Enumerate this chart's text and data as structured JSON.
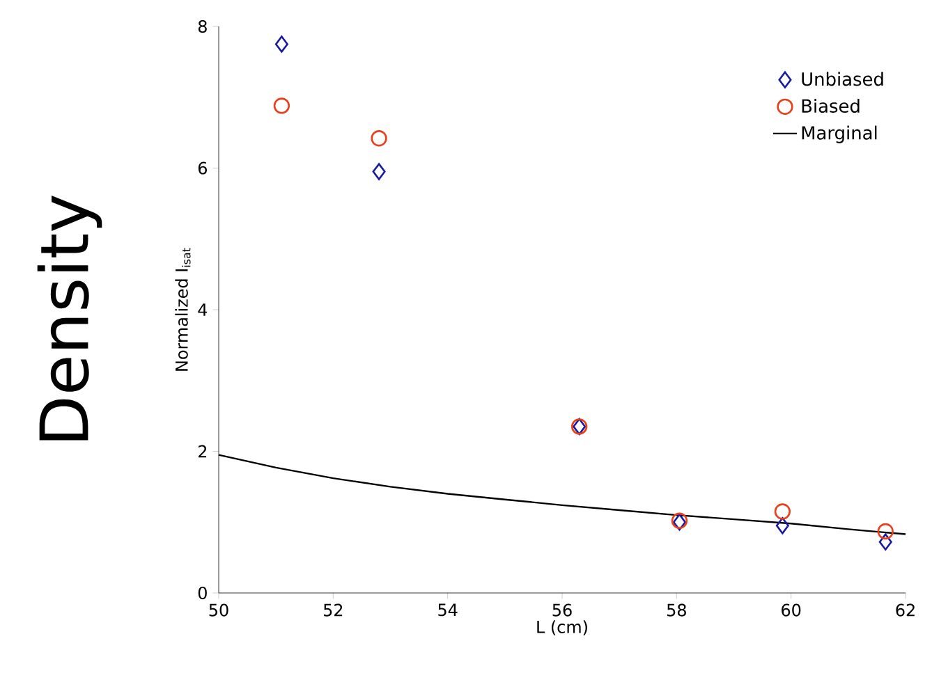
{
  "chart_data": {
    "type": "scatter",
    "xlabel": "L (cm)",
    "ylabel": "Normalized I$_{isat}$",
    "xlim": [
      50,
      62
    ],
    "xticks": [
      50,
      52,
      54,
      56,
      58,
      60,
      62
    ],
    "ylim": [
      0,
      8
    ],
    "yticks": [
      0,
      2,
      4,
      6,
      8
    ],
    "grid": false,
    "legend": "top right",
    "annotations": [
      "Density"
    ],
    "series": [
      {
        "name": "Unbiased",
        "marker": "diamond",
        "color": "#1a1aa0",
        "x": [
          51.1,
          52.8,
          56.3,
          58.05,
          59.85,
          61.65
        ],
        "values": [
          7.75,
          5.95,
          2.35,
          1.0,
          0.95,
          0.72
        ]
      },
      {
        "name": "Biased",
        "marker": "circle",
        "color": "#e8401c",
        "x": [
          51.1,
          52.8,
          56.3,
          58.05,
          59.85,
          61.65
        ],
        "values": [
          6.88,
          6.42,
          2.35,
          1.02,
          1.15,
          0.87
        ]
      },
      {
        "name": "Marginal",
        "type": "line",
        "marker": "none",
        "line_style": "solid",
        "color": "#000000",
        "x": [
          50,
          51,
          52,
          53,
          54,
          55,
          56,
          57,
          58,
          59,
          60,
          61,
          62
        ],
        "values": [
          1.95,
          1.77,
          1.62,
          1.5,
          1.4,
          1.32,
          1.24,
          1.17,
          1.1,
          1.04,
          0.98,
          0.9,
          0.83
        ]
      }
    ]
  }
}
